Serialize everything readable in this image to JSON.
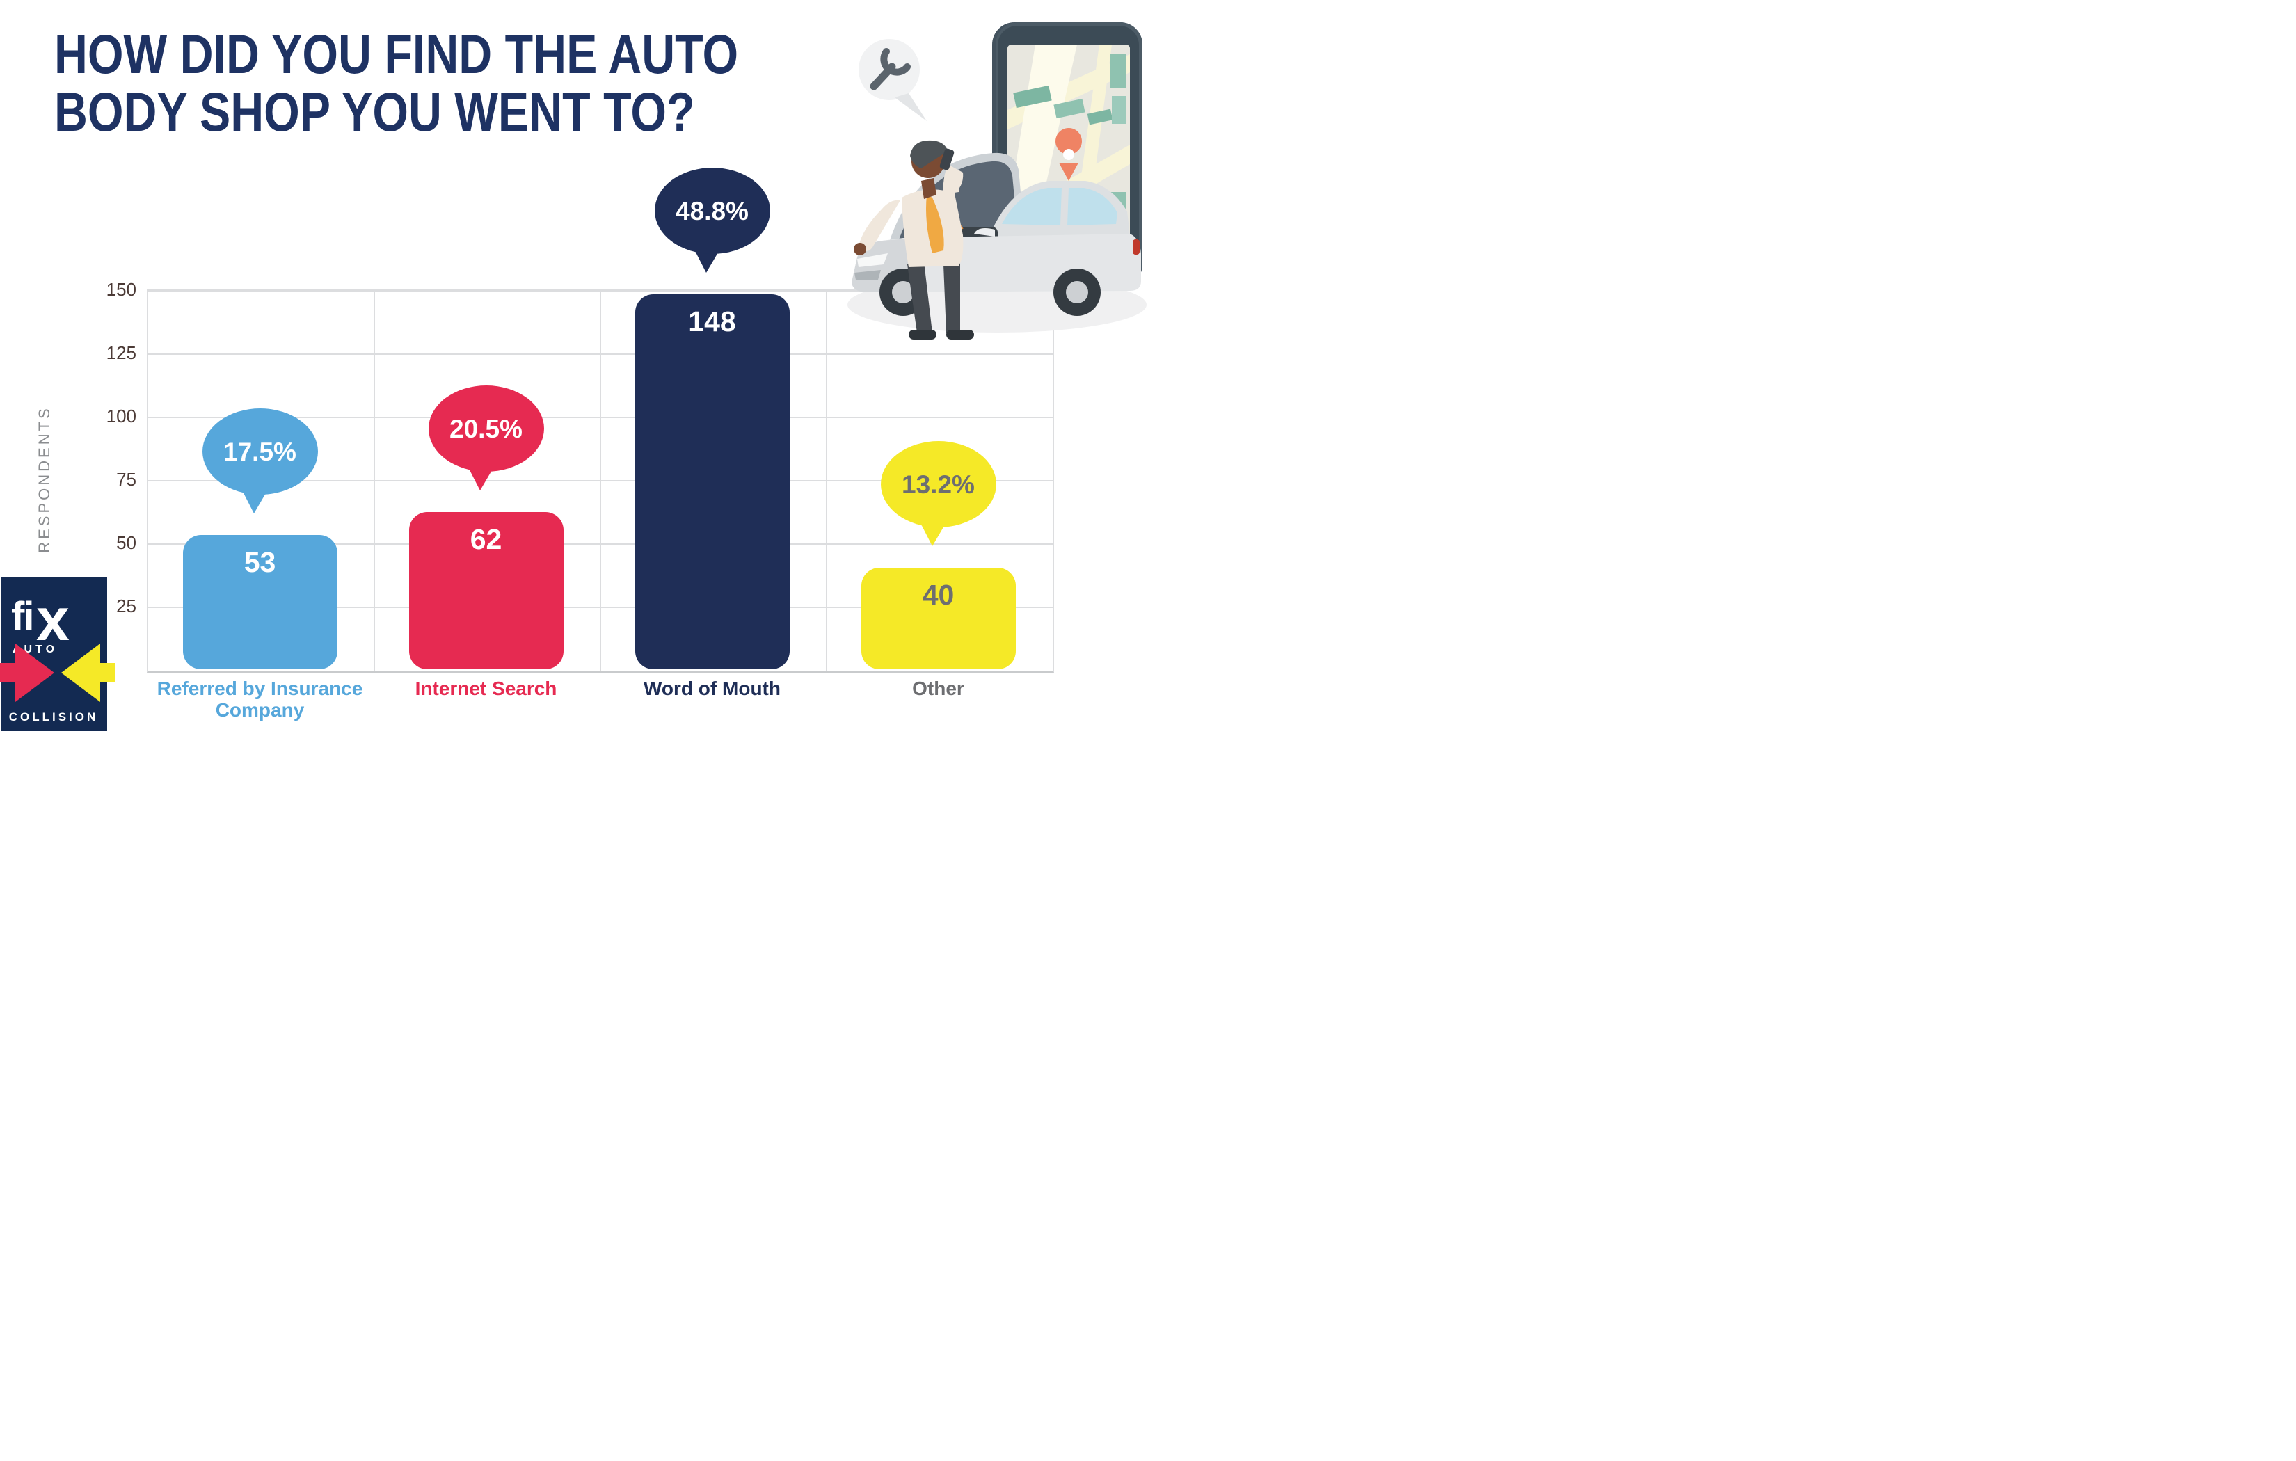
{
  "title": {
    "line1": "HOW DID YOU FIND THE AUTO",
    "line2": "BODY SHOP YOU WENT TO?"
  },
  "chart_data": {
    "type": "bar",
    "title": "How did you find the auto body shop you went to?",
    "ylabel": "RESPONDENTS",
    "xlabel": "",
    "ylim": [
      0,
      150
    ],
    "yticks": [
      25,
      50,
      75,
      100,
      125,
      150
    ],
    "grid": true,
    "legend": "none",
    "categories": [
      "Referred by Insurance Company",
      "Internet Search",
      "Word of Mouth",
      "Other"
    ],
    "category_display": [
      [
        "Referred by Insurance",
        "Company"
      ],
      [
        "Internet Search"
      ],
      [
        "Word of Mouth"
      ],
      [
        "Other"
      ]
    ],
    "values": [
      53,
      62,
      148,
      40
    ],
    "percent_labels": [
      "17.5%",
      "20.5%",
      "48.8%",
      "13.2%"
    ],
    "bar_colors": [
      "#56a7db",
      "#e62a51",
      "#1f2e57",
      "#f5e927"
    ],
    "value_text_colors": [
      "#ffffff",
      "#ffffff",
      "#ffffff",
      "#6d6e71"
    ],
    "bubble_text_colors": [
      "#ffffff",
      "#ffffff",
      "#ffffff",
      "#6d6e71"
    ],
    "category_label_colors": [
      "#56a7db",
      "#e62a51",
      "#1f2e57",
      "#6d6e71"
    ],
    "gridline_color": "#dcdddf",
    "tick_color": "#4b3a36",
    "axis_label_color": "#8a8c8f"
  },
  "logo": {
    "brand": "fix",
    "sub_brand": "AUTO",
    "division": "COLLISION",
    "box_color": "#132a52",
    "arrow_right_color": "#e62a51",
    "arrow_left_color": "#f5e927",
    "text_color": "#ffffff"
  },
  "illustration": {
    "icons": [
      "smartphone-map-icon",
      "location-pin-icon",
      "car-open-hood-icon",
      "man-on-phone-icon",
      "wrench-speech-bubble-icon"
    ],
    "phone_color": "#43525e",
    "map_street_color": "#f8f4d7",
    "map_block_color": "#7db6a2",
    "pin_color": "#ef8364",
    "car_color": "#dde0e2",
    "hood_color": "#5a6673",
    "shirt_color": "#f0e7dc",
    "tie_color": "#f0a943",
    "skin_color": "#7b4b33"
  }
}
